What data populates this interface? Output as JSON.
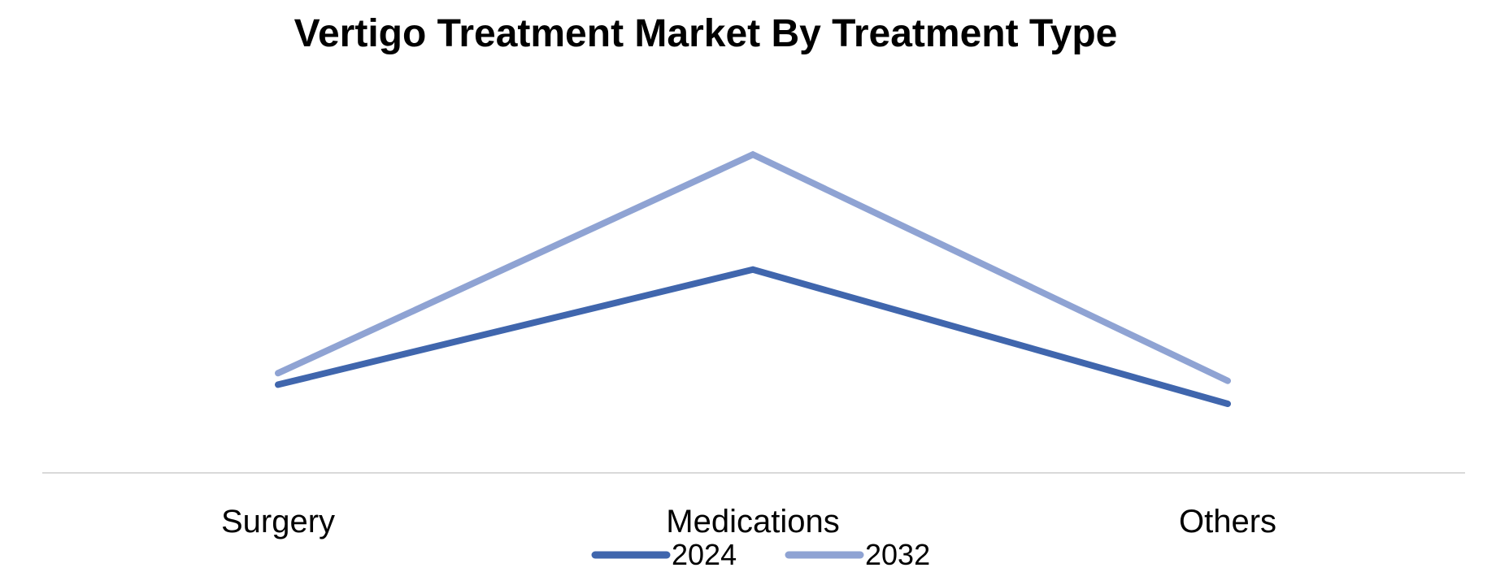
{
  "chart_data": {
    "type": "line",
    "title": "Vertigo Treatment Market By Treatment Type",
    "xlabel": "",
    "ylabel": "",
    "categories": [
      "Surgery",
      "Medications",
      "Others"
    ],
    "series": [
      {
        "name": "2024",
        "values": [
          1.2,
          4.2,
          0.7
        ],
        "color": "#4066AD"
      },
      {
        "name": "2032",
        "values": [
          1.5,
          7.2,
          1.3
        ],
        "color": "#8FA3D3"
      }
    ],
    "ylim": [
      -1.1,
      8.9
    ],
    "grid": false,
    "legend_position": "bottom",
    "axis_line_color": "#D9D9D9"
  }
}
